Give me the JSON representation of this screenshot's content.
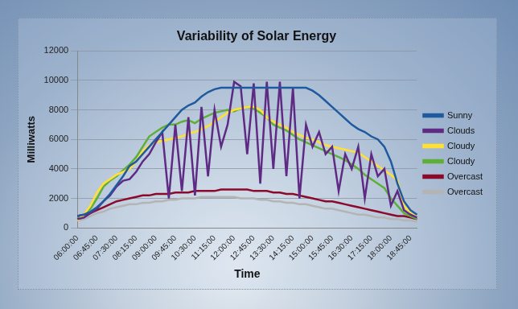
{
  "chart_data": {
    "type": "line",
    "title": "Variability of Solar Energy",
    "x_label": "Time",
    "y_label": "Milliwatts",
    "categories": [
      "06:00:00",
      null,
      null,
      "06:45:00",
      null,
      null,
      "07:30:00",
      null,
      null,
      "08:15:00",
      null,
      null,
      "09:00:00",
      null,
      null,
      "09:45:00",
      null,
      null,
      "10:30:00",
      null,
      null,
      "11:15:00",
      null,
      null,
      "12:00:00",
      null,
      null,
      "12:45:00",
      null,
      null,
      "13:30:00",
      null,
      null,
      "14:15:00",
      null,
      null,
      "15:00:00",
      null,
      null,
      "15:45:00",
      null,
      null,
      "16:30:00",
      null,
      null,
      "17:15:00",
      null,
      null,
      "18:00:00",
      null,
      null,
      "18:45:00",
      null
    ],
    "series": [
      {
        "name": "Sunny",
        "color": "#1f5a9e",
        "values": [
          800,
          900,
          1100,
          1400,
          1800,
          2300,
          2900,
          3500,
          4200,
          4500,
          5000,
          5500,
          6000,
          6500,
          7000,
          7500,
          8000,
          8300,
          8500,
          8900,
          9200,
          9400,
          9500,
          9500,
          9500,
          9500,
          9500,
          9500,
          9500,
          9500,
          9500,
          9500,
          9500,
          9500,
          9500,
          9500,
          9300,
          9000,
          8600,
          8200,
          7800,
          7400,
          7000,
          6700,
          6500,
          6200,
          6000,
          5500,
          4500,
          3000,
          1800,
          1200,
          900
        ]
      },
      {
        "name": "Clouds",
        "color": "#5e2a84",
        "values": [
          600,
          700,
          1000,
          1300,
          1800,
          2200,
          2800,
          3200,
          3300,
          3800,
          4500,
          5000,
          5800,
          6500,
          2000,
          7000,
          2500,
          7500,
          2200,
          8200,
          3500,
          8000,
          5500,
          7000,
          9900,
          9600,
          5000,
          9800,
          3000,
          9900,
          4000,
          9900,
          3500,
          9500,
          2000,
          7000,
          5500,
          6500,
          5000,
          5500,
          2500,
          5000,
          4000,
          5500,
          2000,
          5000,
          3500,
          4000,
          1500,
          2500,
          1200,
          900,
          700
        ]
      },
      {
        "name": "Cloudy",
        "color": "#ffe033",
        "values": [
          500,
          900,
          1500,
          2400,
          3000,
          3300,
          3600,
          3800,
          4000,
          4500,
          5200,
          5600,
          5800,
          5900,
          6000,
          6100,
          6200,
          6400,
          6500,
          6700,
          6900,
          7200,
          7500,
          7800,
          8000,
          8100,
          8200,
          8200,
          8000,
          7500,
          7200,
          7000,
          6800,
          6500,
          6300,
          6100,
          6000,
          5800,
          5600,
          5500,
          5400,
          5300,
          5200,
          5100,
          4800,
          4500,
          4200,
          3900,
          3600,
          3200,
          1500,
          1000,
          700
        ]
      },
      {
        "name": "Cloudy",
        "color": "#5fae3a",
        "values": [
          600,
          900,
          1300,
          2000,
          2800,
          3200,
          3500,
          3900,
          4300,
          4800,
          5500,
          6200,
          6500,
          6800,
          7000,
          7000,
          7200,
          7300,
          7100,
          7400,
          7600,
          7800,
          7900,
          8000,
          7900,
          8100,
          8200,
          8100,
          7800,
          7500,
          7000,
          6800,
          6600,
          6300,
          6000,
          5800,
          5600,
          5400,
          5200,
          5000,
          4800,
          4600,
          4300,
          4000,
          3600,
          3300,
          3000,
          2700,
          2000,
          1500,
          1000,
          800,
          600
        ]
      },
      {
        "name": "Overcast",
        "color": "#8b0a2a",
        "values": [
          800,
          900,
          1000,
          1200,
          1400,
          1600,
          1800,
          1900,
          2000,
          2100,
          2200,
          2200,
          2300,
          2300,
          2300,
          2400,
          2400,
          2400,
          2500,
          2500,
          2500,
          2500,
          2600,
          2600,
          2600,
          2600,
          2600,
          2500,
          2500,
          2500,
          2400,
          2400,
          2300,
          2300,
          2200,
          2100,
          2000,
          1900,
          1800,
          1800,
          1700,
          1600,
          1500,
          1400,
          1300,
          1200,
          1100,
          1000,
          900,
          800,
          800,
          700,
          600
        ]
      },
      {
        "name": "Overcast",
        "color": "#b4b4b4",
        "values": [
          500,
          600,
          800,
          1000,
          1100,
          1300,
          1400,
          1500,
          1600,
          1600,
          1700,
          1700,
          1800,
          1800,
          1900,
          1900,
          2000,
          2000,
          2000,
          2100,
          2100,
          2100,
          2100,
          2100,
          2100,
          2000,
          2000,
          2000,
          1900,
          1900,
          1800,
          1800,
          1700,
          1700,
          1600,
          1600,
          1500,
          1400,
          1300,
          1300,
          1200,
          1100,
          1000,
          900,
          900,
          800,
          700,
          700,
          600,
          600,
          500,
          500,
          400
        ]
      }
    ],
    "ylim": [
      0,
      12000
    ],
    "yticks": [
      0,
      2000,
      4000,
      6000,
      8000,
      10000,
      12000
    ],
    "grid": true,
    "legend": "right"
  }
}
